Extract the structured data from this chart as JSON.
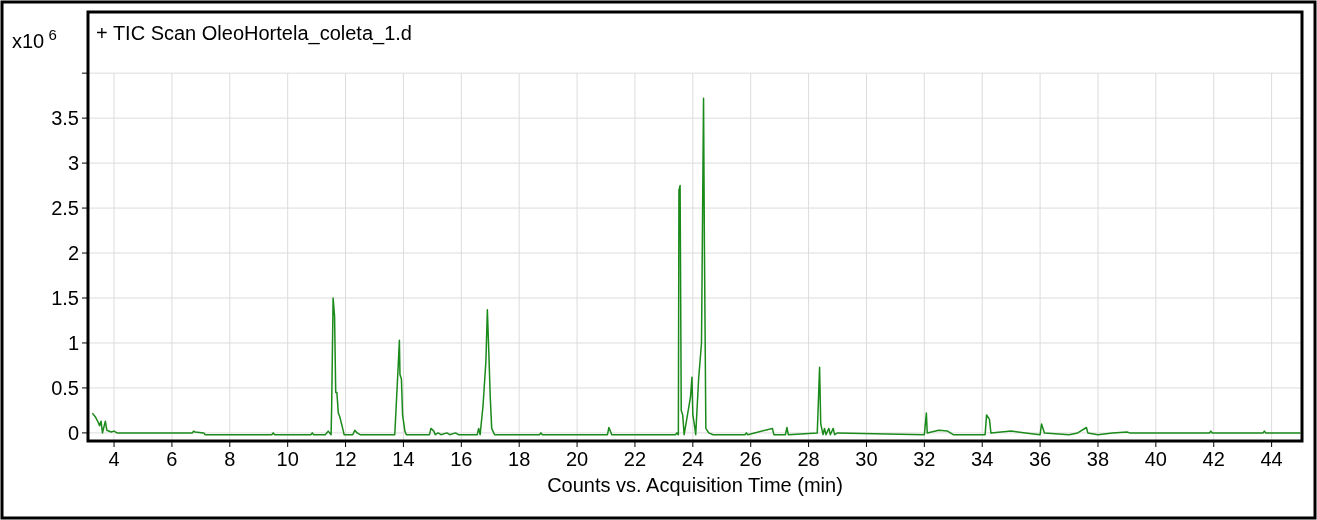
{
  "chart_data": {
    "type": "line",
    "title": "+ TIC Scan OleoHortela_coleta_1.d",
    "xlabel": "Counts vs. Acquisition Time (min)",
    "ylabel": "x10$^{6}$",
    "xlim": [
      3.1,
      45.05
    ],
    "ylim": [
      -0.09,
      4.68
    ],
    "xticks": [
      4,
      6,
      8,
      10,
      12,
      14,
      16,
      18,
      20,
      22,
      24,
      26,
      28,
      30,
      32,
      34,
      36,
      38,
      40,
      42,
      44
    ],
    "yticks": [
      0,
      0.5,
      1,
      1.5,
      2,
      2.5,
      3,
      3.5,
      {
        "value": 4,
        "label": null
      }
    ],
    "grid": true,
    "marker": "none",
    "line_style": "solid",
    "series": [
      {
        "color": "#1a8a1a",
        "x": [
          3.25,
          3.35,
          3.45,
          3.5,
          3.55,
          3.6,
          3.7,
          3.75,
          3.9,
          4.0,
          4.1,
          6.7,
          6.75,
          6.8,
          7.1,
          7.15,
          9.45,
          9.5,
          9.55,
          10.8,
          10.85,
          10.9,
          11.3,
          11.4,
          11.5,
          11.52,
          11.57,
          11.62,
          11.66,
          11.7,
          11.75,
          11.8,
          11.9,
          11.95,
          12.25,
          12.32,
          12.4,
          12.5,
          13.7,
          13.75,
          13.82,
          13.86,
          13.88,
          13.93,
          13.97,
          14.05,
          14.1,
          14.9,
          14.95,
          15.05,
          15.1,
          15.2,
          15.3,
          15.5,
          15.6,
          15.8,
          15.9,
          16.55,
          16.6,
          16.65,
          16.75,
          16.85,
          16.9,
          16.95,
          17.0,
          17.05,
          17.15,
          18.7,
          18.75,
          18.8,
          21.05,
          21.1,
          21.15,
          21.2,
          23.4,
          23.45,
          23.5,
          23.52,
          23.56,
          23.6,
          23.65,
          23.7,
          23.92,
          23.97,
          24.0,
          24.05,
          24.1,
          24.2,
          24.3,
          24.37,
          24.4,
          24.45,
          24.55,
          24.7,
          25.8,
          25.85,
          25.9,
          26.75,
          26.8,
          27.2,
          27.25,
          27.3,
          28.3,
          28.38,
          28.42,
          28.5,
          28.55,
          28.6,
          28.7,
          28.75,
          28.85,
          28.9,
          29.0,
          32.0,
          32.07,
          32.1,
          32.5,
          32.8,
          33.0,
          34.1,
          34.15,
          34.25,
          34.3,
          35.0,
          35.5,
          36.0,
          36.05,
          36.15,
          37.0,
          37.3,
          37.6,
          37.65,
          38.0,
          38.5,
          39.0,
          39.1,
          41.85,
          41.9,
          41.95,
          43.7,
          43.75,
          43.8,
          43.9,
          45.0
        ],
        "values": [
          0.22,
          0.18,
          0.12,
          0.08,
          0.13,
          0.0,
          0.13,
          0.03,
          0.01,
          0.02,
          0.0,
          0.0,
          0.02,
          0.01,
          0.0,
          -0.02,
          -0.02,
          0.0,
          -0.02,
          -0.02,
          0.0,
          -0.02,
          -0.02,
          0.02,
          -0.02,
          0.3,
          1.5,
          1.3,
          0.45,
          0.45,
          0.22,
          0.18,
          0.05,
          -0.02,
          -0.02,
          0.03,
          0.0,
          -0.02,
          -0.02,
          0.3,
          0.75,
          1.03,
          0.65,
          0.6,
          0.2,
          0.02,
          -0.02,
          -0.02,
          0.05,
          0.02,
          -0.02,
          0.0,
          -0.02,
          0.0,
          -0.02,
          0.0,
          -0.02,
          -0.02,
          0.05,
          -0.02,
          0.3,
          0.8,
          1.37,
          0.9,
          0.4,
          0.05,
          -0.02,
          -0.02,
          0.0,
          -0.02,
          -0.02,
          0.06,
          0.02,
          -0.02,
          -0.02,
          0.0,
          -0.02,
          2.7,
          2.75,
          0.25,
          0.2,
          -0.02,
          0.4,
          0.62,
          0.2,
          0.1,
          -0.02,
          0.6,
          1.0,
          3.72,
          2.1,
          0.05,
          0.0,
          -0.02,
          -0.02,
          0.0,
          -0.02,
          0.05,
          -0.02,
          -0.02,
          0.06,
          -0.02,
          0.0,
          0.73,
          0.1,
          -0.02,
          0.05,
          -0.02,
          0.05,
          -0.02,
          0.05,
          -0.02,
          0.0,
          -0.02,
          0.22,
          0.0,
          0.03,
          0.02,
          -0.02,
          -0.02,
          0.2,
          0.15,
          0.0,
          0.02,
          0.0,
          -0.02,
          0.1,
          0.0,
          -0.02,
          0.0,
          0.06,
          0.0,
          -0.02,
          0.0,
          0.01,
          0.0,
          0.0,
          0.02,
          0.0,
          0.0,
          0.02,
          0.0,
          0.0,
          0.0
        ]
      }
    ]
  }
}
